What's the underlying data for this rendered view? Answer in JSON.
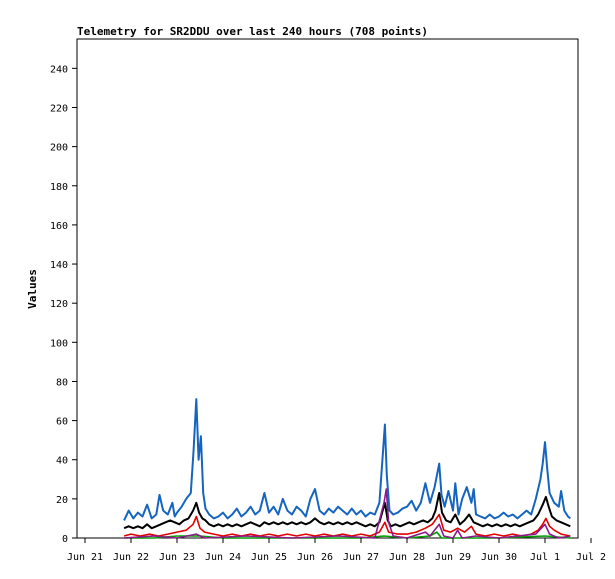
{
  "chart_data": {
    "type": "line",
    "title": "Telemetry for SR2DDU over last 240 hours (708 points)",
    "ylabel": "Values",
    "xlabel": "",
    "ylim": [
      0,
      255
    ],
    "xlim": [
      0,
      11
    ],
    "grid": false,
    "legend": "none",
    "yticks": [
      0,
      20,
      40,
      60,
      80,
      100,
      120,
      140,
      160,
      180,
      200,
      220,
      240
    ],
    "xticks": [
      {
        "x": 0,
        "label": "Jun 21"
      },
      {
        "x": 1,
        "label": "Jun 22"
      },
      {
        "x": 2,
        "label": "Jun 23"
      },
      {
        "x": 3,
        "label": "Jun 24"
      },
      {
        "x": 4,
        "label": "Jun 25"
      },
      {
        "x": 5,
        "label": "Jun 26"
      },
      {
        "x": 6,
        "label": "Jun 27"
      },
      {
        "x": 7,
        "label": "Jun 28"
      },
      {
        "x": 8,
        "label": "Jun 29"
      },
      {
        "x": 9,
        "label": "Jun 30"
      },
      {
        "x": 10,
        "label": "Jul 1"
      },
      {
        "x": 11,
        "label": "Jul 2"
      }
    ],
    "series": [
      {
        "color": "#1565c0",
        "points": [
          [
            0.85,
            9
          ],
          [
            0.95,
            14
          ],
          [
            1.05,
            10
          ],
          [
            1.15,
            13
          ],
          [
            1.25,
            11
          ],
          [
            1.35,
            17
          ],
          [
            1.45,
            10
          ],
          [
            1.55,
            12
          ],
          [
            1.62,
            22
          ],
          [
            1.7,
            14
          ],
          [
            1.8,
            12
          ],
          [
            1.9,
            18
          ],
          [
            1.95,
            11
          ],
          [
            2.0,
            13
          ],
          [
            2.1,
            16
          ],
          [
            2.2,
            20
          ],
          [
            2.3,
            23
          ],
          [
            2.36,
            45
          ],
          [
            2.42,
            71
          ],
          [
            2.47,
            40
          ],
          [
            2.52,
            52
          ],
          [
            2.57,
            23
          ],
          [
            2.62,
            15
          ],
          [
            2.7,
            12
          ],
          [
            2.8,
            10
          ],
          [
            2.9,
            11
          ],
          [
            3.0,
            13
          ],
          [
            3.1,
            10
          ],
          [
            3.2,
            12
          ],
          [
            3.3,
            15
          ],
          [
            3.4,
            11
          ],
          [
            3.5,
            13
          ],
          [
            3.6,
            16
          ],
          [
            3.7,
            12
          ],
          [
            3.8,
            14
          ],
          [
            3.9,
            23
          ],
          [
            4.0,
            13
          ],
          [
            4.1,
            16
          ],
          [
            4.2,
            12
          ],
          [
            4.3,
            20
          ],
          [
            4.4,
            14
          ],
          [
            4.5,
            12
          ],
          [
            4.6,
            16
          ],
          [
            4.7,
            14
          ],
          [
            4.8,
            11
          ],
          [
            4.9,
            20
          ],
          [
            5.0,
            25
          ],
          [
            5.1,
            14
          ],
          [
            5.2,
            12
          ],
          [
            5.3,
            15
          ],
          [
            5.4,
            13
          ],
          [
            5.5,
            16
          ],
          [
            5.6,
            14
          ],
          [
            5.7,
            12
          ],
          [
            5.8,
            15
          ],
          [
            5.9,
            12
          ],
          [
            6.0,
            14
          ],
          [
            6.1,
            11
          ],
          [
            6.2,
            13
          ],
          [
            6.3,
            12
          ],
          [
            6.4,
            18
          ],
          [
            6.52,
            58
          ],
          [
            6.56,
            32
          ],
          [
            6.62,
            14
          ],
          [
            6.7,
            12
          ],
          [
            6.8,
            13
          ],
          [
            6.9,
            15
          ],
          [
            7.0,
            16
          ],
          [
            7.1,
            19
          ],
          [
            7.2,
            14
          ],
          [
            7.3,
            18
          ],
          [
            7.4,
            28
          ],
          [
            7.5,
            18
          ],
          [
            7.6,
            26
          ],
          [
            7.65,
            32
          ],
          [
            7.7,
            38
          ],
          [
            7.75,
            22
          ],
          [
            7.82,
            16
          ],
          [
            7.9,
            24
          ],
          [
            8.0,
            14
          ],
          [
            8.05,
            28
          ],
          [
            8.12,
            12
          ],
          [
            8.2,
            20
          ],
          [
            8.3,
            26
          ],
          [
            8.4,
            18
          ],
          [
            8.45,
            25
          ],
          [
            8.5,
            12
          ],
          [
            8.6,
            11
          ],
          [
            8.7,
            10
          ],
          [
            8.8,
            12
          ],
          [
            8.9,
            10
          ],
          [
            9.0,
            11
          ],
          [
            9.1,
            13
          ],
          [
            9.2,
            11
          ],
          [
            9.3,
            12
          ],
          [
            9.4,
            10
          ],
          [
            9.5,
            12
          ],
          [
            9.6,
            14
          ],
          [
            9.7,
            12
          ],
          [
            9.8,
            20
          ],
          [
            9.9,
            30
          ],
          [
            9.95,
            38
          ],
          [
            10.0,
            49
          ],
          [
            10.05,
            35
          ],
          [
            10.1,
            23
          ],
          [
            10.2,
            18
          ],
          [
            10.3,
            16
          ],
          [
            10.35,
            24
          ],
          [
            10.42,
            14
          ],
          [
            10.5,
            11
          ],
          [
            10.55,
            10
          ]
        ]
      },
      {
        "color": "#000000",
        "points": [
          [
            0.85,
            5
          ],
          [
            0.95,
            6
          ],
          [
            1.05,
            5
          ],
          [
            1.15,
            6
          ],
          [
            1.25,
            5
          ],
          [
            1.35,
            7
          ],
          [
            1.45,
            5
          ],
          [
            1.55,
            6
          ],
          [
            1.65,
            7
          ],
          [
            1.75,
            8
          ],
          [
            1.85,
            9
          ],
          [
            1.95,
            8
          ],
          [
            2.05,
            7
          ],
          [
            2.15,
            9
          ],
          [
            2.25,
            10
          ],
          [
            2.35,
            14
          ],
          [
            2.42,
            18
          ],
          [
            2.48,
            13
          ],
          [
            2.55,
            10
          ],
          [
            2.62,
            9
          ],
          [
            2.7,
            7
          ],
          [
            2.8,
            6
          ],
          [
            2.9,
            7
          ],
          [
            3.0,
            6
          ],
          [
            3.1,
            7
          ],
          [
            3.2,
            6
          ],
          [
            3.3,
            7
          ],
          [
            3.4,
            6
          ],
          [
            3.5,
            7
          ],
          [
            3.6,
            8
          ],
          [
            3.7,
            7
          ],
          [
            3.8,
            6
          ],
          [
            3.9,
            8
          ],
          [
            4.0,
            7
          ],
          [
            4.1,
            8
          ],
          [
            4.2,
            7
          ],
          [
            4.3,
            8
          ],
          [
            4.4,
            7
          ],
          [
            4.5,
            8
          ],
          [
            4.6,
            7
          ],
          [
            4.7,
            8
          ],
          [
            4.8,
            7
          ],
          [
            4.9,
            8
          ],
          [
            5.0,
            10
          ],
          [
            5.1,
            8
          ],
          [
            5.2,
            7
          ],
          [
            5.3,
            8
          ],
          [
            5.4,
            7
          ],
          [
            5.5,
            8
          ],
          [
            5.6,
            7
          ],
          [
            5.7,
            8
          ],
          [
            5.8,
            7
          ],
          [
            5.9,
            8
          ],
          [
            6.0,
            7
          ],
          [
            6.1,
            6
          ],
          [
            6.2,
            7
          ],
          [
            6.3,
            6
          ],
          [
            6.4,
            8
          ],
          [
            6.52,
            18
          ],
          [
            6.58,
            9
          ],
          [
            6.65,
            6
          ],
          [
            6.75,
            7
          ],
          [
            6.85,
            6
          ],
          [
            6.95,
            7
          ],
          [
            7.05,
            8
          ],
          [
            7.15,
            7
          ],
          [
            7.25,
            8
          ],
          [
            7.35,
            9
          ],
          [
            7.45,
            8
          ],
          [
            7.55,
            10
          ],
          [
            7.62,
            14
          ],
          [
            7.7,
            23
          ],
          [
            7.76,
            13
          ],
          [
            7.85,
            9
          ],
          [
            7.95,
            8
          ],
          [
            8.05,
            12
          ],
          [
            8.15,
            7
          ],
          [
            8.25,
            9
          ],
          [
            8.35,
            12
          ],
          [
            8.45,
            8
          ],
          [
            8.55,
            7
          ],
          [
            8.65,
            6
          ],
          [
            8.75,
            7
          ],
          [
            8.85,
            6
          ],
          [
            8.95,
            7
          ],
          [
            9.05,
            6
          ],
          [
            9.15,
            7
          ],
          [
            9.25,
            6
          ],
          [
            9.35,
            7
          ],
          [
            9.45,
            6
          ],
          [
            9.55,
            7
          ],
          [
            9.65,
            8
          ],
          [
            9.75,
            9
          ],
          [
            9.85,
            12
          ],
          [
            9.95,
            17
          ],
          [
            10.02,
            21
          ],
          [
            10.08,
            16
          ],
          [
            10.15,
            11
          ],
          [
            10.25,
            9
          ],
          [
            10.35,
            8
          ],
          [
            10.45,
            7
          ],
          [
            10.55,
            6
          ]
        ]
      },
      {
        "color": "#e00000",
        "points": [
          [
            0.85,
            1
          ],
          [
            1.0,
            2
          ],
          [
            1.2,
            1
          ],
          [
            1.4,
            2
          ],
          [
            1.6,
            1
          ],
          [
            1.8,
            2
          ],
          [
            2.0,
            3
          ],
          [
            2.2,
            4
          ],
          [
            2.35,
            7
          ],
          [
            2.42,
            11
          ],
          [
            2.5,
            5
          ],
          [
            2.6,
            3
          ],
          [
            2.8,
            2
          ],
          [
            3.0,
            1
          ],
          [
            3.2,
            2
          ],
          [
            3.4,
            1
          ],
          [
            3.6,
            2
          ],
          [
            3.8,
            1
          ],
          [
            4.0,
            2
          ],
          [
            4.2,
            1
          ],
          [
            4.4,
            2
          ],
          [
            4.6,
            1
          ],
          [
            4.8,
            2
          ],
          [
            5.0,
            1
          ],
          [
            5.2,
            2
          ],
          [
            5.4,
            1
          ],
          [
            5.6,
            2
          ],
          [
            5.8,
            1
          ],
          [
            6.0,
            2
          ],
          [
            6.2,
            1
          ],
          [
            6.4,
            3
          ],
          [
            6.52,
            8
          ],
          [
            6.6,
            3
          ],
          [
            6.8,
            2
          ],
          [
            7.0,
            2
          ],
          [
            7.2,
            3
          ],
          [
            7.4,
            5
          ],
          [
            7.55,
            7
          ],
          [
            7.7,
            12
          ],
          [
            7.8,
            4
          ],
          [
            7.95,
            3
          ],
          [
            8.1,
            5
          ],
          [
            8.25,
            3
          ],
          [
            8.4,
            6
          ],
          [
            8.5,
            2
          ],
          [
            8.7,
            1
          ],
          [
            8.9,
            2
          ],
          [
            9.1,
            1
          ],
          [
            9.3,
            2
          ],
          [
            9.5,
            1
          ],
          [
            9.7,
            2
          ],
          [
            9.85,
            4
          ],
          [
            9.95,
            7
          ],
          [
            10.02,
            10
          ],
          [
            10.1,
            6
          ],
          [
            10.2,
            4
          ],
          [
            10.35,
            2
          ],
          [
            10.55,
            1
          ]
        ]
      },
      {
        "color": "#00a000",
        "points": [
          [
            0.85,
            0
          ],
          [
            1.5,
            0
          ],
          [
            2.0,
            1
          ],
          [
            2.5,
            1
          ],
          [
            3.0,
            0
          ],
          [
            4.0,
            0
          ],
          [
            5.0,
            0
          ],
          [
            6.0,
            0
          ],
          [
            6.5,
            1
          ],
          [
            7.0,
            0
          ],
          [
            7.5,
            1
          ],
          [
            7.65,
            3
          ],
          [
            7.75,
            0
          ],
          [
            8.0,
            0
          ],
          [
            9.0,
            0
          ],
          [
            10.0,
            1
          ],
          [
            10.55,
            0
          ]
        ]
      },
      {
        "color": "#8b1a8b",
        "points": [
          [
            0.85,
            0
          ],
          [
            1.5,
            1
          ],
          [
            2.0,
            0
          ],
          [
            2.42,
            2
          ],
          [
            2.6,
            0
          ],
          [
            3.5,
            1
          ],
          [
            4.5,
            0
          ],
          [
            5.5,
            1
          ],
          [
            6.3,
            0
          ],
          [
            6.5,
            18
          ],
          [
            6.55,
            25
          ],
          [
            6.6,
            8
          ],
          [
            6.7,
            1
          ],
          [
            7.0,
            0
          ],
          [
            7.4,
            3
          ],
          [
            7.5,
            1
          ],
          [
            7.7,
            7
          ],
          [
            7.8,
            1
          ],
          [
            8.0,
            0
          ],
          [
            8.1,
            4
          ],
          [
            8.2,
            0
          ],
          [
            8.5,
            1
          ],
          [
            9.0,
            0
          ],
          [
            9.8,
            2
          ],
          [
            10.0,
            7
          ],
          [
            10.1,
            2
          ],
          [
            10.3,
            0
          ],
          [
            10.55,
            1
          ]
        ]
      }
    ]
  }
}
